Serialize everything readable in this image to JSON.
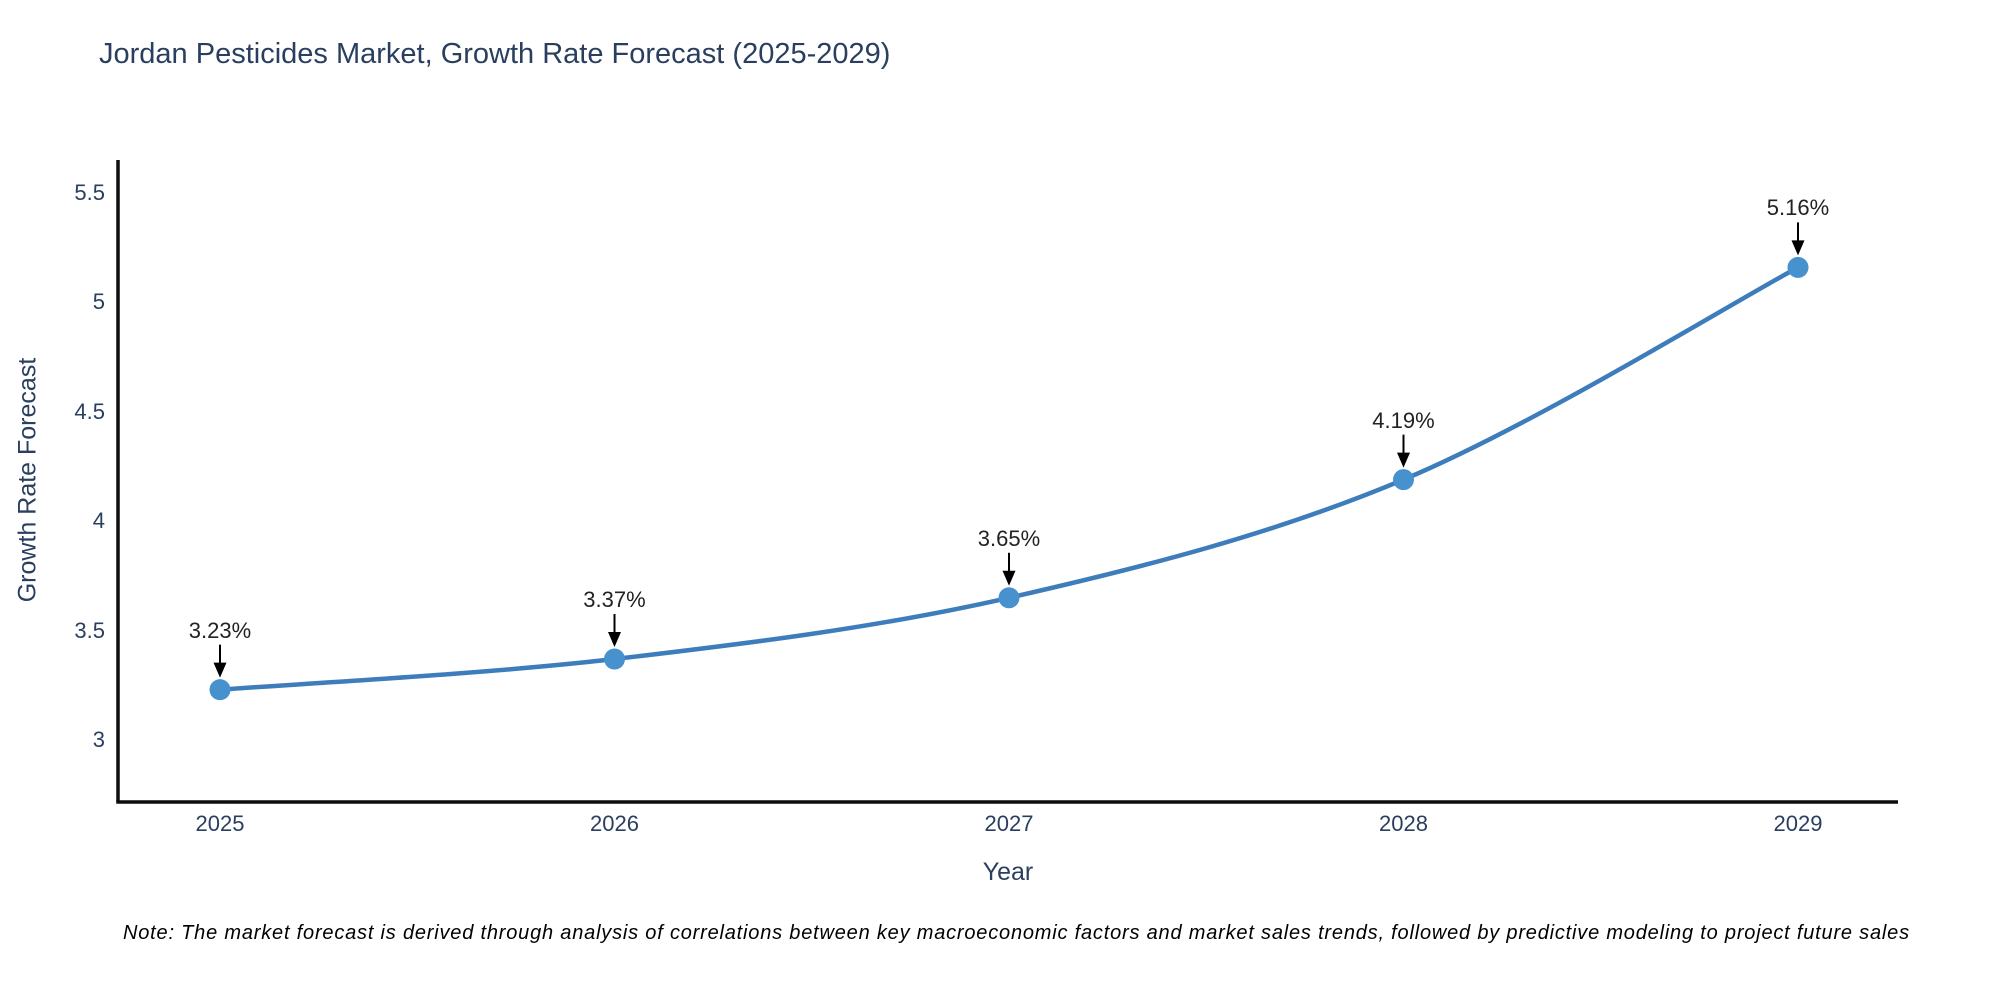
{
  "chart_data": {
    "type": "line",
    "title": "Jordan Pesticides Market, Growth Rate Forecast (2025-2029)",
    "xlabel": "Year",
    "ylabel": "Growth Rate Forecast",
    "categories": [
      "2025",
      "2026",
      "2027",
      "2028",
      "2029"
    ],
    "values": [
      3.23,
      3.37,
      3.65,
      4.19,
      5.16
    ],
    "point_labels": [
      "3.23%",
      "3.37%",
      "3.65%",
      "4.19%",
      "5.16%"
    ],
    "ytick_values": [
      3,
      3.5,
      4,
      4.5,
      5,
      5.5
    ],
    "ytick_labels": [
      "3",
      "3.5",
      "4",
      "4.5",
      "5",
      "5.5"
    ],
    "ylim": [
      2.72,
      5.65
    ],
    "grid": false,
    "legend_position": "none",
    "line_shape": "spline",
    "annotation_style": "arrow-down-to-point",
    "colors": {
      "line": "#3d7dbb",
      "marker": "#4691ce",
      "axis": "#0d0d0d",
      "axis_text": "#2a3f5f",
      "annotation_text": "#222222",
      "arrow": "#000000"
    }
  },
  "footnote": "Note: The market forecast is derived through analysis of correlations between key macroeconomic factors and market sales trends, followed by predictive modeling to project future sales"
}
